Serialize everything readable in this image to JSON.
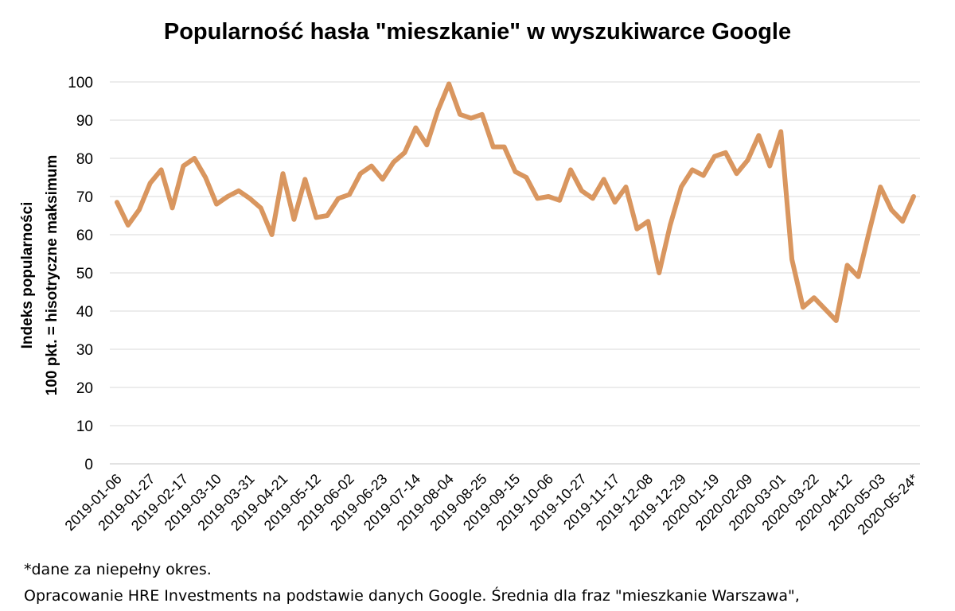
{
  "chart_data": {
    "type": "line",
    "title": "Popularność hasła \"mieszkanie\" w wyszukiwarce Google",
    "ylabel_line1": "Indeks popularności",
    "ylabel_line2": "100 pkt. = hisotryczne maksimum",
    "ylim": [
      0,
      100
    ],
    "yticks": [
      0,
      10,
      20,
      30,
      40,
      50,
      60,
      70,
      80,
      90,
      100
    ],
    "grid": true,
    "line_color": "#d9965f",
    "x_tick_labels": [
      "2019-01-06",
      "2019-01-27",
      "2019-02-17",
      "2019-03-10",
      "2019-03-31",
      "2019-04-21",
      "2019-05-12",
      "2019-06-02",
      "2019-06-23",
      "2019-07-14",
      "2019-08-04",
      "2019-08-25",
      "2019-09-15",
      "2019-10-06",
      "2019-10-27",
      "2019-11-17",
      "2019-12-08",
      "2019-12-29",
      "2020-01-19",
      "2020-02-09",
      "2020-03-01",
      "2020-03-22",
      "2020-04-12",
      "2020-05-03",
      "2020-05-24*"
    ],
    "values": [
      68.5,
      62.5,
      66.5,
      73.5,
      77,
      67,
      78,
      80,
      75,
      68,
      70,
      71.5,
      69.5,
      67,
      60,
      76,
      64,
      74.5,
      64.5,
      65,
      69.5,
      70.5,
      76,
      78,
      74.5,
      79,
      81.5,
      88,
      83.5,
      92.5,
      99.5,
      91.5,
      90.5,
      91.5,
      83,
      83,
      76.5,
      75,
      69.5,
      70,
      69,
      77,
      71.5,
      69.5,
      74.5,
      68.5,
      72.5,
      61.5,
      63.5,
      50,
      62.5,
      72.5,
      77,
      75.5,
      80.5,
      81.5,
      76,
      79.5,
      86,
      78,
      87,
      53.5,
      41,
      43.5,
      40.5,
      37.5,
      52,
      49,
      61,
      72.5,
      66.5,
      63.5,
      70
    ]
  },
  "footnotes": {
    "line1": "*dane za niepełny okres.",
    "line2": "Opracowanie HRE Investments na podstawie danych Google. Średnia dla fraz \"mieszkanie Warszawa\","
  }
}
